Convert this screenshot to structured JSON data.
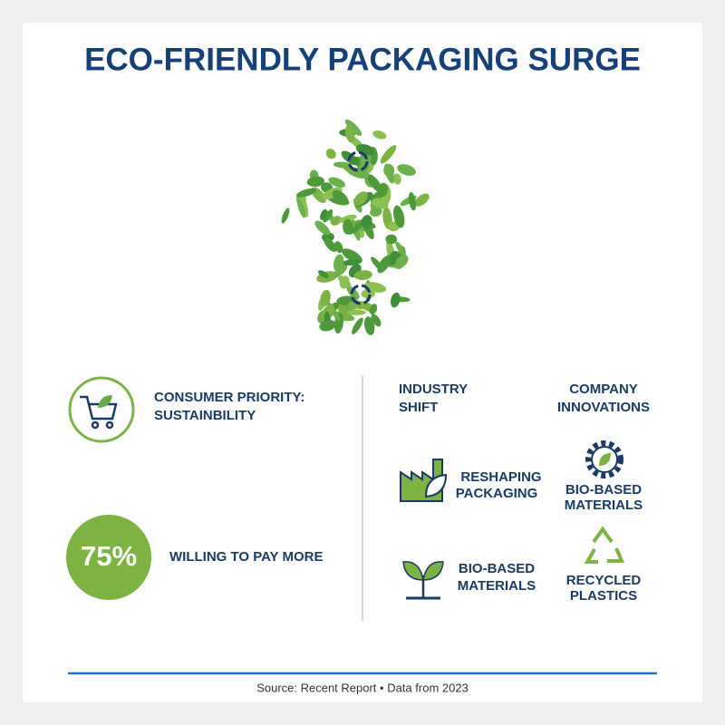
{
  "header": {
    "title": "ECO-FRIENDLY PACKAGING SURGE"
  },
  "consumer": {
    "priority": [
      "CONSUMER PRIORITY:",
      "SUSTAINBILITY"
    ],
    "stat": "75%",
    "stat_label": "WILLING TO PAY MORE"
  },
  "industry_shift": {
    "heading": [
      "INDUSTRY",
      "SHIFT"
    ],
    "items": [
      {
        "label": [
          "RESHAPING",
          "PACKAGING"
        ]
      },
      {
        "label": [
          "BIO-BASED",
          "MATERIALS"
        ]
      }
    ]
  },
  "company_innovations": {
    "heading": [
      "COMPANY",
      "INNOVATIONS"
    ],
    "items": [
      {
        "label": [
          "BIO-BASED",
          "MATERIALS"
        ]
      },
      {
        "label": [
          "RECYCLED",
          "PLASTICS"
        ]
      }
    ]
  },
  "footer": {
    "source": "Source: Recent Report • Data from 2023"
  }
}
